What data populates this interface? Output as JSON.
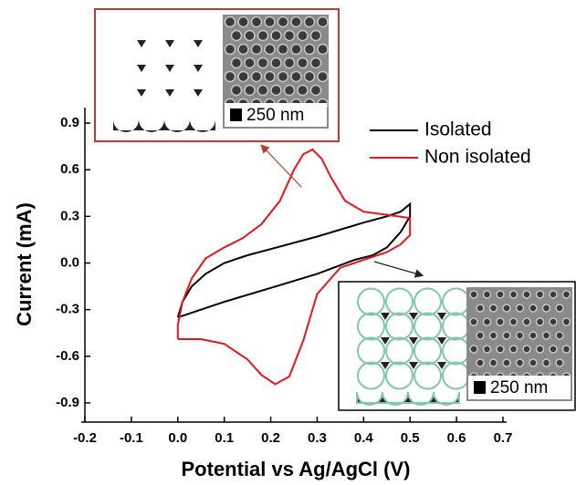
{
  "chart_data": {
    "type": "line",
    "x_label": "Potential vs Ag/AgCl (V)",
    "y_label": "Current (mA)",
    "xlim": [
      -0.2,
      0.7
    ],
    "xticks": [
      -0.2,
      -0.1,
      {
        "value": 0,
        "label": "0.0"
      },
      0.1,
      0.2,
      0.3,
      0.4,
      0.5,
      0.6,
      0.7
    ],
    "ylim": [
      -1.0,
      1.0
    ],
    "yticks": [
      -0.9,
      -0.6,
      -0.3,
      {
        "value": 0,
        "label": "0.0"
      },
      0.3,
      0.6,
      0.9
    ],
    "grid": false,
    "legend": "upper right",
    "series": [
      {
        "name": "Isolated",
        "color": "#000000",
        "x": [
          0,
          0.01,
          0.03,
          0.06,
          0.1,
          0.15,
          0.2,
          0.3,
          0.4,
          0.45,
          0.48,
          0.5,
          0.5,
          0.48,
          0.45,
          0.42,
          0.38,
          0.3,
          0.2,
          0.1,
          0
        ],
        "values": [
          -0.35,
          -0.25,
          -0.15,
          -0.07,
          0,
          0.05,
          0.09,
          0.17,
          0.26,
          0.3,
          0.33,
          0.38,
          0.3,
          0.2,
          0.1,
          0.05,
          0.02,
          -0.07,
          -0.16,
          -0.25,
          -0.35
        ]
      },
      {
        "name": "Non isolated",
        "color": "#e8131b",
        "x": [
          0,
          0.05,
          0.1,
          0.15,
          0.18,
          0.21,
          0.24,
          0.27,
          0.3,
          0.35,
          0.4,
          0.45,
          0.48,
          0.5,
          0.5,
          0.45,
          0.4,
          0.36,
          0.33,
          0.31,
          0.29,
          0.27,
          0.25,
          0.22,
          0.18,
          0.14,
          0.1,
          0.06,
          0.03,
          0.01,
          0,
          0
        ],
        "values": [
          -0.49,
          -0.49,
          -0.52,
          -0.62,
          -0.72,
          -0.78,
          -0.73,
          -0.5,
          -0.2,
          -0.03,
          0.02,
          0.07,
          0.12,
          0.18,
          0.29,
          0.31,
          0.33,
          0.4,
          0.55,
          0.67,
          0.73,
          0.7,
          0.6,
          0.4,
          0.25,
          0.16,
          0.1,
          0.03,
          -0.1,
          -0.25,
          -0.4,
          -0.49
        ]
      }
    ],
    "insets": [
      {
        "scale_label": "250 nm"
      },
      {
        "scale_label": "250 nm"
      }
    ]
  }
}
